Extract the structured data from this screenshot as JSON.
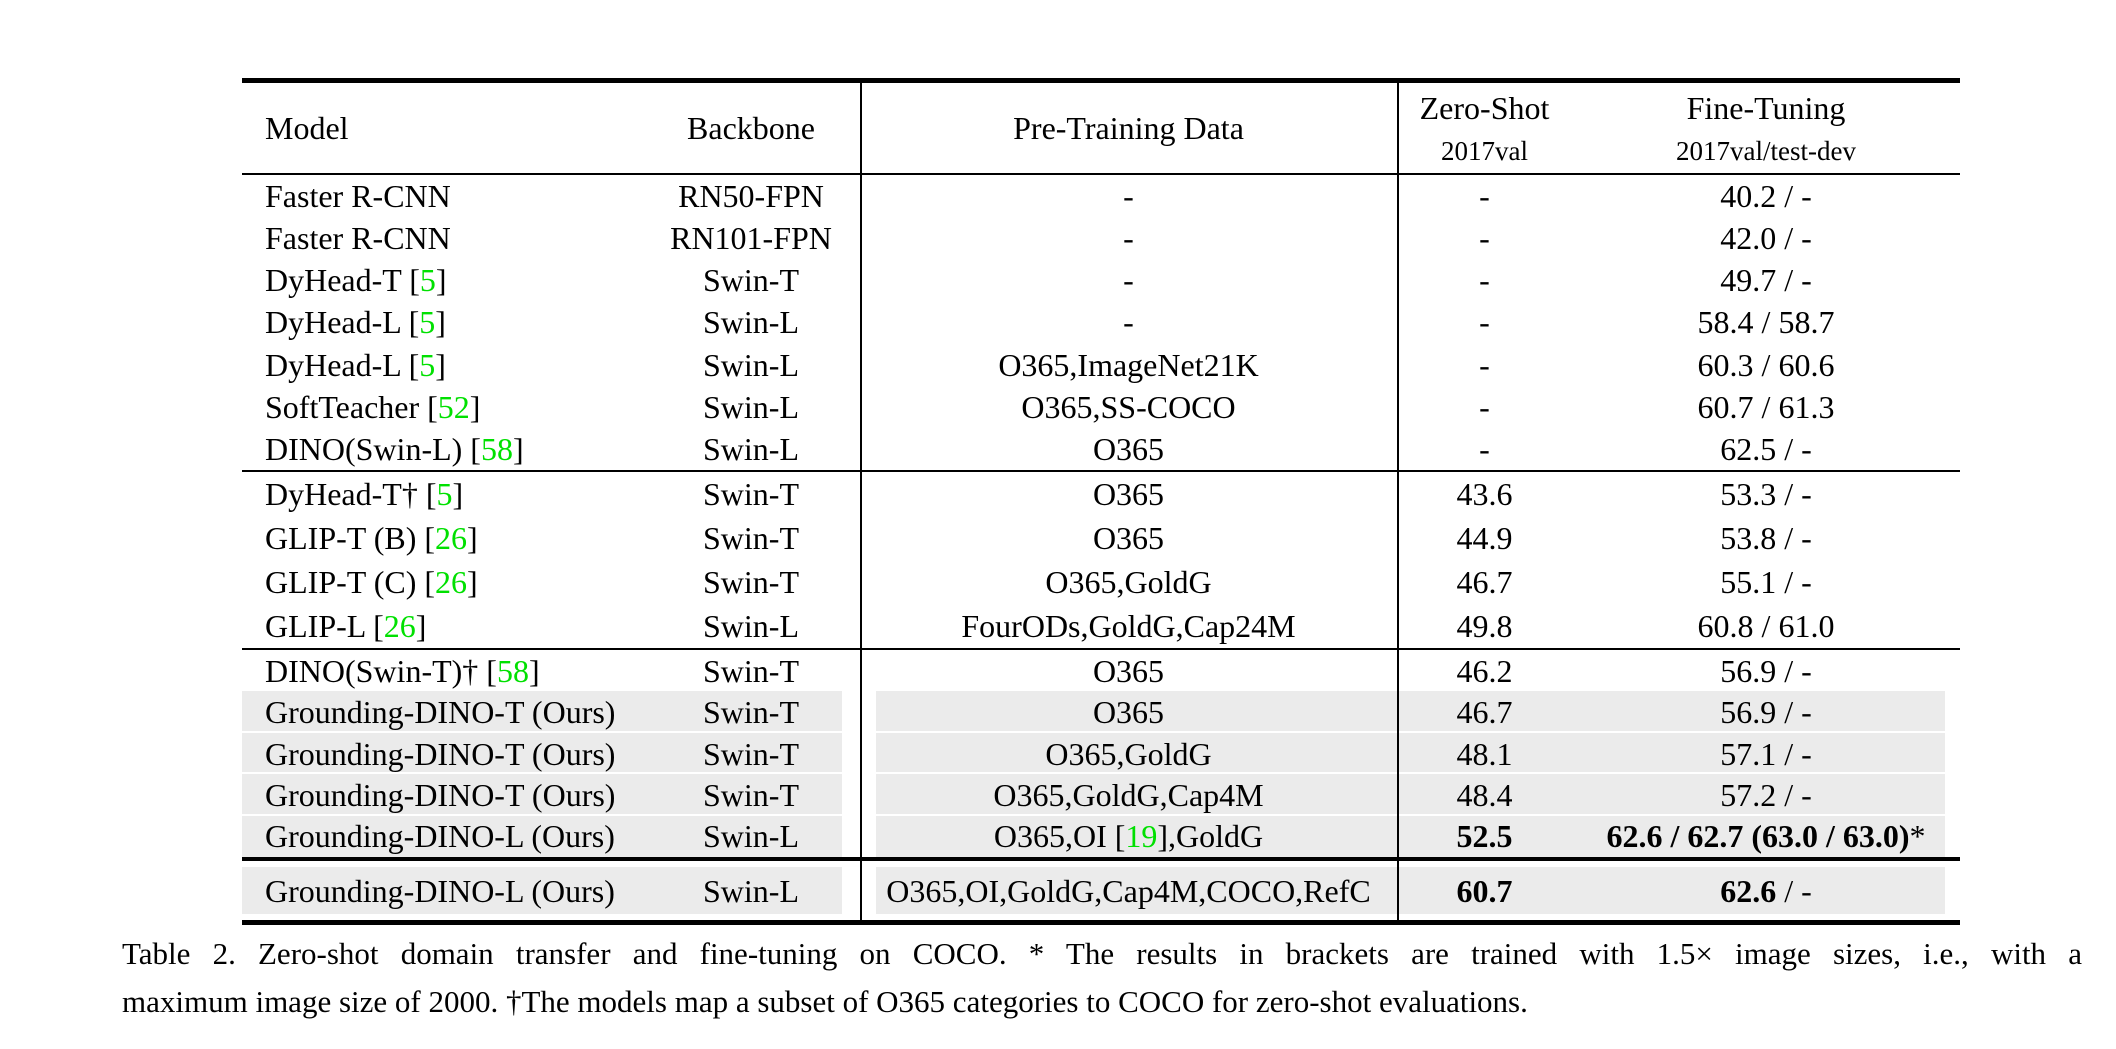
{
  "colors": {
    "citation_green": "#00e000",
    "row_highlight": "#ebebeb",
    "text": "#000000",
    "background": "#ffffff"
  },
  "table": {
    "columns": [
      {
        "id": "model",
        "label": "Model",
        "align": "left"
      },
      {
        "id": "backbone",
        "label": "Backbone",
        "align": "center"
      },
      {
        "id": "pretrain",
        "label": "Pre-Training Data",
        "align": "center"
      },
      {
        "id": "zeroshot",
        "label": "Zero-Shot",
        "sublabel": "2017val",
        "align": "center"
      },
      {
        "id": "finetune",
        "label": "Fine-Tuning",
        "sublabel": "2017val/test-dev",
        "align": "center"
      }
    ],
    "groups": [
      {
        "rows": [
          {
            "model": "Faster R-CNN",
            "backbone": "RN50-FPN",
            "pretrain": "-",
            "zeroshot": "-",
            "finetune": "40.2 / -",
            "highlight": false
          },
          {
            "model": "Faster R-CNN",
            "backbone": "RN101-FPN",
            "pretrain": "-",
            "zeroshot": "-",
            "finetune": "42.0 / -",
            "highlight": false
          },
          {
            "model": "DyHead-T [5]",
            "backbone": "Swin-T",
            "pretrain": "-",
            "zeroshot": "-",
            "finetune": "49.7 / -",
            "highlight": false
          },
          {
            "model": "DyHead-L [5]",
            "backbone": "Swin-L",
            "pretrain": "-",
            "zeroshot": "-",
            "finetune": "58.4 / 58.7",
            "highlight": false
          },
          {
            "model": "DyHead-L [5]",
            "backbone": "Swin-L",
            "pretrain": "O365,ImageNet21K",
            "zeroshot": "-",
            "finetune": "60.3 / 60.6",
            "highlight": false
          },
          {
            "model": "SoftTeacher [52]",
            "backbone": "Swin-L",
            "pretrain": "O365,SS-COCO",
            "zeroshot": "-",
            "finetune": "60.7 / 61.3",
            "highlight": false
          },
          {
            "model": "DINO(Swin-L) [58]",
            "backbone": "Swin-L",
            "pretrain": "O365",
            "zeroshot": "-",
            "finetune": "62.5 / -",
            "highlight": false
          }
        ]
      },
      {
        "rows": [
          {
            "model": "DyHead-T† [5]",
            "backbone": "Swin-T",
            "pretrain": "O365",
            "zeroshot": "43.6",
            "finetune": "53.3 / -",
            "highlight": false
          },
          {
            "model": "GLIP-T (B) [26]",
            "backbone": "Swin-T",
            "pretrain": "O365",
            "zeroshot": "44.9",
            "finetune": "53.8 / -",
            "highlight": false
          },
          {
            "model": "GLIP-T (C) [26]",
            "backbone": "Swin-T",
            "pretrain": "O365,GoldG",
            "zeroshot": "46.7",
            "finetune": "55.1 / -",
            "highlight": false
          },
          {
            "model": "GLIP-L [26]",
            "backbone": "Swin-L",
            "pretrain": "FourODs,GoldG,Cap24M",
            "zeroshot": "49.8",
            "finetune": "60.8 / 61.0",
            "highlight": false
          }
        ]
      },
      {
        "rows": [
          {
            "model": "DINO(Swin-T)† [58]",
            "backbone": "Swin-T",
            "pretrain": "O365",
            "zeroshot": "46.2",
            "finetune": "56.9 / -",
            "highlight": false
          },
          {
            "model": "Grounding-DINO-T (Ours)",
            "backbone": "Swin-T",
            "pretrain": "O365",
            "zeroshot": "46.7",
            "finetune": "56.9 / -",
            "highlight": true
          },
          {
            "model": "Grounding-DINO-T (Ours)",
            "backbone": "Swin-T",
            "pretrain": "O365,GoldG",
            "zeroshot": "48.1",
            "finetune": "57.1 / -",
            "highlight": true
          },
          {
            "model": "Grounding-DINO-T (Ours)",
            "backbone": "Swin-T",
            "pretrain": "O365,GoldG,Cap4M",
            "zeroshot": "48.4",
            "finetune": "57.2 / -",
            "highlight": true
          },
          {
            "model": "Grounding-DINO-L (Ours)",
            "backbone": "Swin-L",
            "pretrain": "O365,OI [19],GoldG",
            "zeroshot": "**52.5**",
            "finetune": "**62.6 / 62.7 (63.0 / 63.0)***",
            "highlight": true
          }
        ]
      },
      {
        "rows": [
          {
            "model": "Grounding-DINO-L (Ours)",
            "backbone": "Swin-L",
            "pretrain": "O365,OI,GoldG,Cap4M,COCO,RefC",
            "zeroshot": "**60.7**",
            "finetune": "**62.6** / -",
            "highlight": true
          }
        ]
      }
    ]
  },
  "caption": {
    "line1": "Table 2. Zero-shot domain transfer and fine-tuning on COCO. * The results in brackets are trained with 1.5× image sizes, i.e., with a",
    "line2": "maximum image size of 2000. †The models map a subset of O365 categories to COCO for zero-shot evaluations."
  }
}
